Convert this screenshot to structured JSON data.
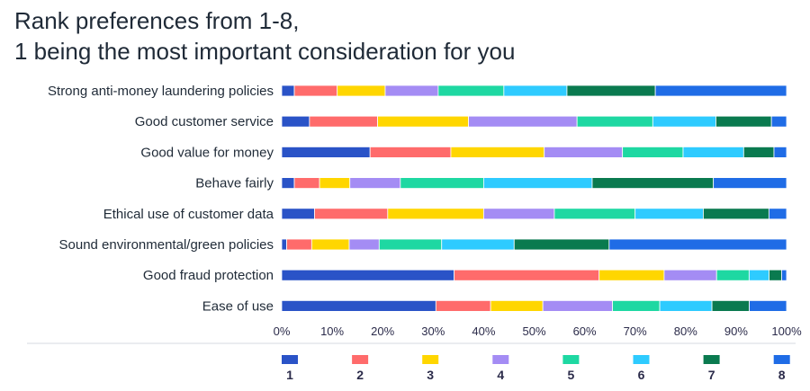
{
  "chart_data": {
    "type": "bar",
    "stacked": true,
    "orientation": "horizontal",
    "title_lines": [
      "Rank preferences from 1-8,",
      "1 being the most important consideration for you"
    ],
    "categories": [
      "Strong anti-money laundering policies",
      "Good customer service",
      "Good value for money",
      "Behave fairly",
      "Ethical use of customer data",
      "Sound environmental/green policies",
      "Good fraud protection",
      "Ease of use"
    ],
    "series": [
      {
        "name": "1",
        "color": "#2a53c7",
        "values": [
          2.5,
          5.5,
          17.5,
          2.5,
          6.5,
          1.0,
          34.5,
          31.0
        ]
      },
      {
        "name": "2",
        "color": "#ff6b6b",
        "values": [
          8.5,
          13.5,
          16.0,
          5.0,
          14.5,
          5.0,
          29.0,
          11.0
        ]
      },
      {
        "name": "3",
        "color": "#ffd600",
        "values": [
          9.5,
          18.0,
          18.5,
          6.0,
          19.0,
          7.5,
          13.0,
          10.5
        ]
      },
      {
        "name": "4",
        "color": "#a48cf4",
        "values": [
          10.5,
          21.5,
          15.5,
          10.0,
          14.0,
          6.0,
          10.5,
          14.0
        ]
      },
      {
        "name": "5",
        "color": "#1ed8a2",
        "values": [
          13.0,
          15.0,
          12.0,
          16.5,
          16.0,
          12.5,
          6.5,
          9.5
        ]
      },
      {
        "name": "6",
        "color": "#2ecbff",
        "values": [
          12.5,
          12.5,
          12.0,
          21.5,
          13.5,
          14.5,
          4.0,
          10.5
        ]
      },
      {
        "name": "7",
        "color": "#0a7a4f",
        "values": [
          17.5,
          11.0,
          6.0,
          24.0,
          13.0,
          19.0,
          2.5,
          7.5
        ]
      },
      {
        "name": "8",
        "color": "#1f6ce6",
        "values": [
          26.0,
          3.0,
          2.5,
          14.5,
          3.5,
          35.5,
          1.0,
          7.5
        ]
      }
    ],
    "xlim": [
      0,
      100
    ],
    "xticks": [
      0,
      10,
      20,
      30,
      40,
      50,
      60,
      70,
      80,
      90,
      100
    ],
    "xtick_labels": [
      "0%",
      "10%",
      "20%",
      "30%",
      "40%",
      "50%",
      "60%",
      "70%",
      "80%",
      "90%",
      "100%"
    ],
    "legend_position": "bottom"
  }
}
